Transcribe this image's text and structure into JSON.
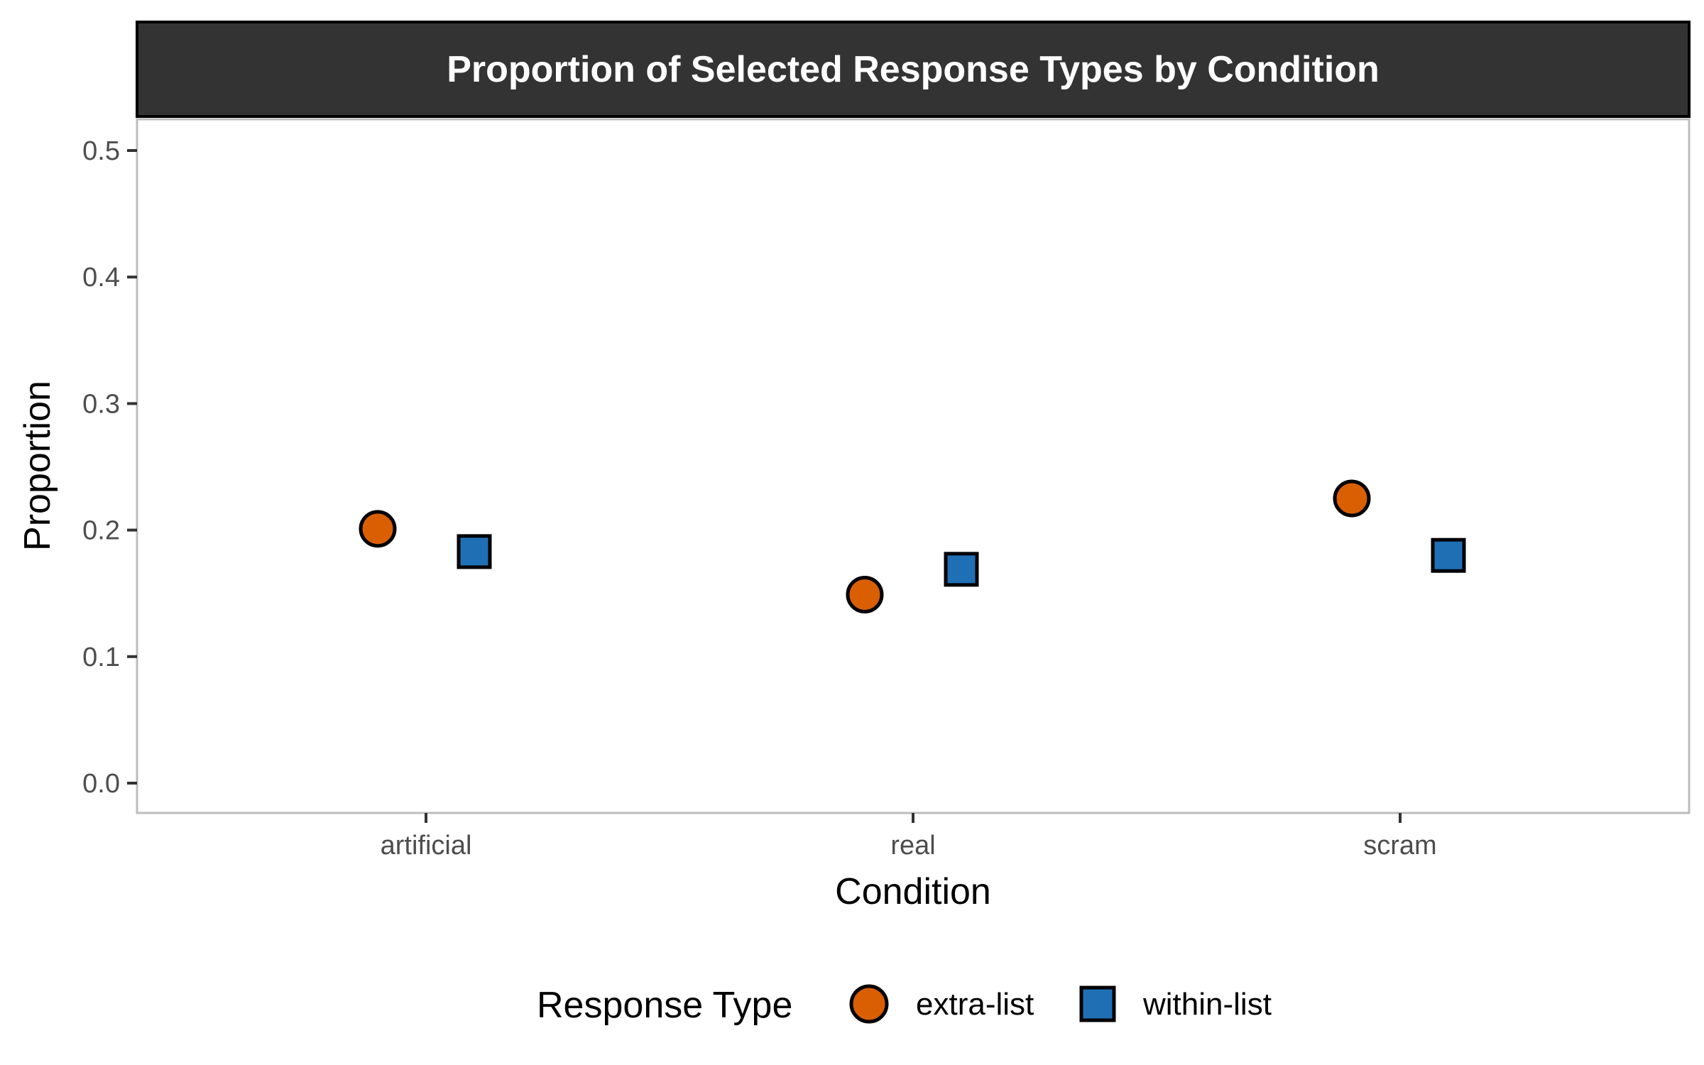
{
  "chart_data": {
    "type": "scatter",
    "title": "Proportion of Selected Response Types by Condition",
    "xlabel": "Condition",
    "ylabel": "Proportion",
    "categories": [
      "artificial",
      "real",
      "scram"
    ],
    "ylim": [
      0,
      0.5
    ],
    "yticks": [
      "0.0",
      "0.1",
      "0.2",
      "0.3",
      "0.4",
      "0.5"
    ],
    "grid": false,
    "legend": {
      "title": "Response Type",
      "placement": "bottom"
    },
    "series": [
      {
        "name": "extra-list",
        "marker": "circle",
        "color": "#d95f02",
        "values": [
          0.201,
          0.149,
          0.225
        ]
      },
      {
        "name": "within-list",
        "marker": "square",
        "color": "#1f6fb4",
        "values": [
          0.183,
          0.169,
          0.18
        ]
      }
    ]
  }
}
